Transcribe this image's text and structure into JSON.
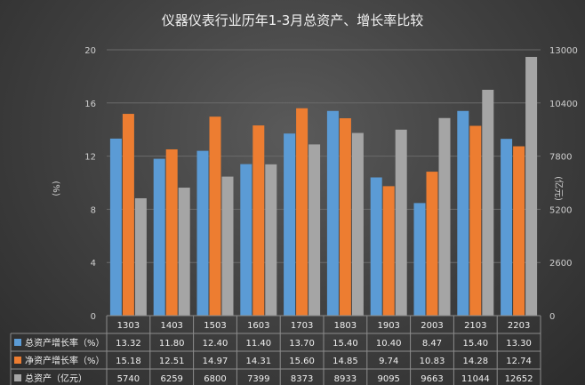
{
  "chart_data": {
    "type": "bar",
    "title": "仪器仪表行业历年1-3月总资产、增长率比较",
    "categories": [
      "1303",
      "1403",
      "1503",
      "1603",
      "1703",
      "1803",
      "1903",
      "2003",
      "2103",
      "2203"
    ],
    "y_left": {
      "label": "(%)",
      "ylim": [
        0,
        20
      ],
      "ticks": [
        0,
        4,
        8,
        12,
        16,
        20
      ]
    },
    "y_right": {
      "label": "(亿元)",
      "ylim": [
        0,
        13000
      ],
      "ticks": [
        0,
        2600,
        5200,
        7800,
        10400,
        13000
      ]
    },
    "grid": true,
    "legend": "table-below",
    "series": [
      {
        "name": "总资产增长率（%）",
        "axis": "left",
        "color": "#5b9bd5",
        "values": [
          13.32,
          11.8,
          12.4,
          11.4,
          13.7,
          15.4,
          10.4,
          8.47,
          15.4,
          13.3
        ],
        "display": [
          "13.32",
          "11.80",
          "12.40",
          "11.40",
          "13.70",
          "15.40",
          "10.40",
          "8.47",
          "15.40",
          "13.30"
        ]
      },
      {
        "name": "净资产增长率（%）",
        "axis": "left",
        "color": "#ed7d31",
        "values": [
          15.18,
          12.51,
          14.97,
          14.31,
          15.6,
          14.85,
          9.74,
          10.83,
          14.28,
          12.74
        ],
        "display": [
          "15.18",
          "12.51",
          "14.97",
          "14.31",
          "15.60",
          "14.85",
          "9.74",
          "10.83",
          "14.28",
          "12.74"
        ]
      },
      {
        "name": "总资产（亿元）",
        "axis": "right",
        "color": "#a5a5a5",
        "values": [
          5740,
          6259,
          6800,
          7399,
          8373,
          8933,
          9095,
          9663,
          11044,
          12652
        ],
        "display": [
          "5740",
          "6259",
          "6800",
          "7399",
          "8373",
          "8933",
          "9095",
          "9663",
          "11044",
          "12652"
        ]
      }
    ]
  }
}
